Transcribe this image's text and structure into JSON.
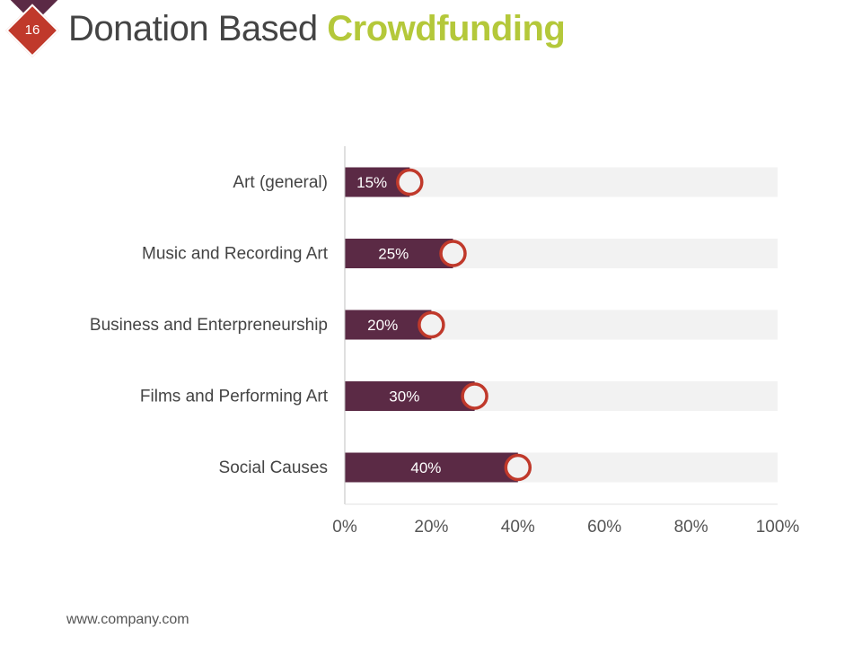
{
  "slide": {
    "number": "16",
    "title_part1": "Donation Based",
    "title_part2": "Crowdfunding",
    "footer": "www.company.com"
  },
  "colors": {
    "bar": "#5b2a45",
    "track": "#f2f2f2",
    "marker_ring": "#c0392b",
    "marker_fill": "#f2f2f2",
    "accent": "#b4c83a"
  },
  "chart_data": {
    "type": "bar",
    "orientation": "horizontal",
    "categories": [
      "Art (general)",
      "Music and Recording Art",
      "Business and Enterpreneurship",
      "Films and Performing Art",
      "Social Causes"
    ],
    "values": [
      15,
      25,
      20,
      30,
      40
    ],
    "value_labels": [
      "15%",
      "25%",
      "20%",
      "30%",
      "40%"
    ],
    "xlim": [
      0,
      100
    ],
    "xticks": [
      "0%",
      "20%",
      "40%",
      "60%",
      "80%",
      "100%"
    ],
    "title": "",
    "xlabel": "",
    "ylabel": ""
  }
}
